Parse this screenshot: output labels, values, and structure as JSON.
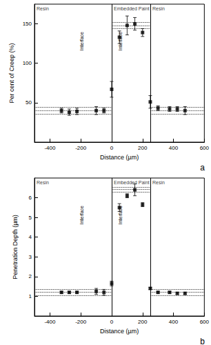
{
  "chart_data": [
    {
      "type": "scatter",
      "panel_label": "a",
      "x_label": "Distance (µm)",
      "y_label": "Per cent of Creep (%)",
      "xlim": [
        -500,
        600
      ],
      "xticks": [
        -400,
        -200,
        0,
        200,
        400,
        600
      ],
      "ylim": [
        0,
        175
      ],
      "yticks": [
        50,
        100,
        150
      ],
      "grid": false,
      "color": "#000000",
      "marker": "square",
      "x": [
        -325,
        -275,
        -225,
        -100,
        -50,
        0,
        50,
        100,
        150,
        200,
        250,
        300,
        375,
        425,
        475
      ],
      "values": [
        40,
        38,
        39,
        40,
        40,
        67,
        133,
        148,
        150,
        139,
        51,
        43,
        42,
        42,
        40
      ],
      "errors": [
        3,
        4,
        4,
        5,
        3,
        10,
        8,
        12,
        8,
        5,
        8,
        3,
        3,
        3,
        5
      ],
      "interfaces": [
        {
          "x": 0,
          "label": "Interface"
        },
        {
          "x": 250,
          "label": "Interface"
        }
      ],
      "regions": [
        {
          "label": "Resin",
          "x_range": [
            -500,
            0
          ]
        },
        {
          "label": "Embedded Paint",
          "x_range": [
            0,
            250
          ]
        },
        {
          "label": "Resin",
          "x_range": [
            250,
            600
          ]
        }
      ],
      "bands": [
        {
          "x_range": [
            -500,
            0
          ],
          "mean": 40,
          "lower": 36,
          "upper": 44
        },
        {
          "x_range": [
            0,
            250
          ],
          "mean": 148,
          "lower": 144,
          "upper": 152
        },
        {
          "x_range": [
            250,
            600
          ],
          "mean": 40,
          "lower": 36,
          "upper": 44
        }
      ],
      "line_style": "dotted"
    },
    {
      "type": "scatter",
      "panel_label": "b",
      "x_label": "Distance (µm)",
      "y_label": "Penetration Depth (µm)",
      "xlim": [
        -500,
        600
      ],
      "xticks": [
        -400,
        -200,
        0,
        200,
        400,
        600
      ],
      "ylim": [
        0,
        7
      ],
      "yticks": [
        1,
        2,
        3,
        4,
        5,
        6
      ],
      "grid": false,
      "color": "#000000",
      "marker": "square",
      "x": [
        -325,
        -275,
        -225,
        -100,
        -50,
        0,
        50,
        100,
        150,
        200,
        250,
        300,
        375,
        425,
        475
      ],
      "values": [
        1.2,
        1.2,
        1.2,
        1.25,
        1.2,
        1.65,
        5.5,
        6.1,
        6.4,
        5.65,
        1.4,
        1.2,
        1.2,
        1.15,
        1.15
      ],
      "errors": [
        0.05,
        0.05,
        0.05,
        0.15,
        0.15,
        0.12,
        0.2,
        0.1,
        0.3,
        0.1,
        0.05,
        0.05,
        0.05,
        0.05,
        0.05
      ],
      "interfaces": [
        {
          "x": 0,
          "label": "Interface"
        },
        {
          "x": 250,
          "label": "Interface"
        }
      ],
      "regions": [
        {
          "label": "Resin",
          "x_range": [
            -500,
            0
          ]
        },
        {
          "label": "Embedded Paint",
          "x_range": [
            0,
            250
          ]
        },
        {
          "label": "Resin",
          "x_range": [
            250,
            600
          ]
        }
      ],
      "bands": [
        {
          "x_range": [
            -500,
            0
          ],
          "mean": 1.2,
          "lower": 1.05,
          "upper": 1.35
        },
        {
          "x_range": [
            0,
            250
          ],
          "mean": 6.42,
          "lower": 6.3,
          "upper": 6.55
        },
        {
          "x_range": [
            250,
            600
          ],
          "mean": 1.2,
          "lower": 1.05,
          "upper": 1.35
        }
      ],
      "line_style": "dotted"
    }
  ]
}
